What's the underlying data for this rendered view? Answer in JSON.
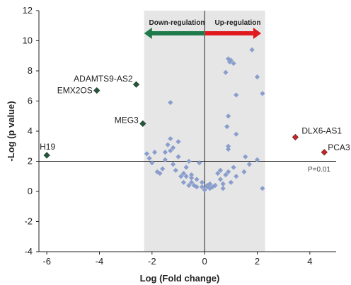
{
  "chart_data": {
    "type": "scatter",
    "xlabel": "Log (Fold change)",
    "ylabel": "-Log (p value)",
    "xlim": [
      -6.3,
      5.0
    ],
    "ylim": [
      -4,
      12
    ],
    "x_ticks": [
      -6,
      -4,
      -2,
      0,
      2,
      4
    ],
    "y_ticks": [
      -4,
      -2,
      0,
      2,
      4,
      6,
      8,
      10,
      12
    ],
    "grid": false,
    "shaded_region": {
      "x": [
        -2.3,
        2.3
      ],
      "color": "#e6e6e6"
    },
    "threshold_line": {
      "y": 2,
      "label": "P=0.01"
    },
    "regions": {
      "down": {
        "label": "Down-regulation",
        "color": "#1e7a4a"
      },
      "up": {
        "label": "Up-regulation",
        "color": "#e0191f"
      }
    },
    "labeled_points": [
      {
        "name": "ADAMTS9-AS2",
        "x": -2.6,
        "y": 7.1,
        "color": "#1e5a3a"
      },
      {
        "name": "EMX2OS",
        "x": -4.1,
        "y": 6.7,
        "color": "#1e5a3a"
      },
      {
        "name": "MEG3",
        "x": -2.35,
        "y": 4.5,
        "color": "#1e5a3a"
      },
      {
        "name": "H19",
        "x": -6.0,
        "y": 2.4,
        "color": "#1e5a3a"
      },
      {
        "name": "DLX6-AS1",
        "x": 3.45,
        "y": 3.6,
        "color": "#d42020"
      },
      {
        "name": "PCA3",
        "x": 4.55,
        "y": 2.6,
        "color": "#d42020"
      }
    ],
    "background_color": "#8a9ecc",
    "background_points": [
      [
        -2.2,
        2.5
      ],
      [
        -2.1,
        2.2
      ],
      [
        -2.0,
        1.9
      ],
      [
        -1.9,
        2.6
      ],
      [
        -1.8,
        1.3
      ],
      [
        -1.7,
        1.2
      ],
      [
        -1.6,
        1.5
      ],
      [
        -1.5,
        2.1
      ],
      [
        -1.4,
        3.1
      ],
      [
        -1.3,
        2.7
      ],
      [
        -1.2,
        1.8
      ],
      [
        -1.1,
        1.4
      ],
      [
        -1.0,
        2.3
      ],
      [
        -0.9,
        1.0
      ],
      [
        -0.8,
        1.2
      ],
      [
        -0.7,
        1.6
      ],
      [
        -0.6,
        2.0
      ],
      [
        -0.5,
        0.6
      ],
      [
        -0.4,
        0.4
      ],
      [
        -0.3,
        0.8
      ],
      [
        -0.2,
        1.9
      ],
      [
        -0.1,
        0.3
      ],
      [
        0.0,
        0.1
      ],
      [
        0.1,
        0.4
      ],
      [
        0.2,
        0.2
      ],
      [
        -1.3,
        3.5
      ],
      [
        -1.2,
        2.9
      ],
      [
        -1.0,
        3.3
      ],
      [
        -1.5,
        2.6
      ],
      [
        -1.3,
        5.9
      ],
      [
        -0.8,
        0.6
      ],
      [
        -0.7,
        1.0
      ],
      [
        -0.6,
        0.4
      ],
      [
        -0.5,
        1.1
      ],
      [
        -0.3,
        0.3
      ],
      [
        0.3,
        0.3
      ],
      [
        0.5,
        1.2
      ],
      [
        0.6,
        0.8
      ],
      [
        0.7,
        0.5
      ],
      [
        0.8,
        1.1
      ],
      [
        0.9,
        1.3
      ],
      [
        1.0,
        0.6
      ],
      [
        1.1,
        1.6
      ],
      [
        1.2,
        1.0
      ],
      [
        0.4,
        0.4
      ],
      [
        0.6,
        1.4
      ],
      [
        0.9,
        8.8
      ],
      [
        0.95,
        8.6
      ],
      [
        1.0,
        8.7
      ],
      [
        1.1,
        8.5
      ],
      [
        0.8,
        7.9
      ],
      [
        1.2,
        6.4
      ],
      [
        1.8,
        9.4
      ],
      [
        2.0,
        7.6
      ],
      [
        2.2,
        6.5
      ],
      [
        0.9,
        5.0
      ],
      [
        0.85,
        4.3
      ],
      [
        0.9,
        3.0
      ],
      [
        0.9,
        2.8
      ],
      [
        1.2,
        3.8
      ],
      [
        1.55,
        2.3
      ],
      [
        1.7,
        1.8
      ],
      [
        2.0,
        2.1
      ],
      [
        2.2,
        0.2
      ],
      [
        1.5,
        1.3
      ],
      [
        0.7,
        0.2
      ],
      [
        0.2,
        0.5
      ],
      [
        -0.1,
        0.6
      ],
      [
        0.1,
        0.3
      ],
      [
        -0.5,
        0.9
      ]
    ]
  }
}
